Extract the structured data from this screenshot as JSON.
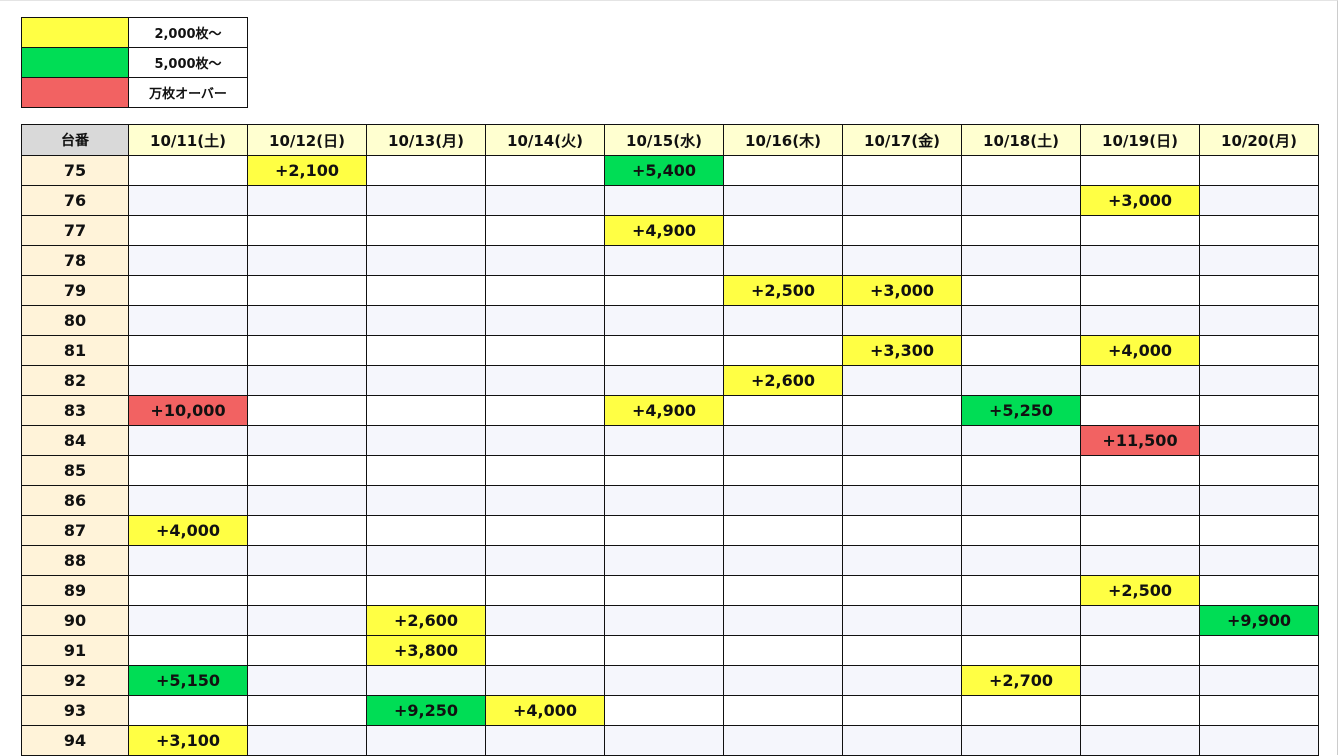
{
  "legend": [
    {
      "label": "2,000枚〜",
      "color": "#ffff44"
    },
    {
      "label": "5,000枚〜",
      "color": "#00dd55"
    },
    {
      "label": "万枚オーバー",
      "color": "#f26262"
    }
  ],
  "table": {
    "corner": "台番",
    "days": [
      "10/11(土)",
      "10/12(日)",
      "10/13(月)",
      "10/14(火)",
      "10/15(水)",
      "10/16(木)",
      "10/17(金)",
      "10/18(土)",
      "10/19(日)",
      "10/20(月)"
    ],
    "rows": [
      {
        "no": "75",
        "cells": [
          "",
          "+2,100",
          "",
          "",
          "+5,400",
          "",
          "",
          "",
          "",
          ""
        ]
      },
      {
        "no": "76",
        "cells": [
          "",
          "",
          "",
          "",
          "",
          "",
          "",
          "",
          "+3,000",
          ""
        ]
      },
      {
        "no": "77",
        "cells": [
          "",
          "",
          "",
          "",
          "+4,900",
          "",
          "",
          "",
          "",
          ""
        ]
      },
      {
        "no": "78",
        "cells": [
          "",
          "",
          "",
          "",
          "",
          "",
          "",
          "",
          "",
          ""
        ]
      },
      {
        "no": "79",
        "cells": [
          "",
          "",
          "",
          "",
          "",
          "+2,500",
          "+3,000",
          "",
          "",
          ""
        ]
      },
      {
        "no": "80",
        "cells": [
          "",
          "",
          "",
          "",
          "",
          "",
          "",
          "",
          "",
          ""
        ]
      },
      {
        "no": "81",
        "cells": [
          "",
          "",
          "",
          "",
          "",
          "",
          "+3,300",
          "",
          "+4,000",
          ""
        ]
      },
      {
        "no": "82",
        "cells": [
          "",
          "",
          "",
          "",
          "",
          "+2,600",
          "",
          "",
          "",
          ""
        ]
      },
      {
        "no": "83",
        "cells": [
          "+10,000",
          "",
          "",
          "",
          "+4,900",
          "",
          "",
          "+5,250",
          "",
          ""
        ]
      },
      {
        "no": "84",
        "cells": [
          "",
          "",
          "",
          "",
          "",
          "",
          "",
          "",
          "+11,500",
          ""
        ]
      },
      {
        "no": "85",
        "cells": [
          "",
          "",
          "",
          "",
          "",
          "",
          "",
          "",
          "",
          ""
        ]
      },
      {
        "no": "86",
        "cells": [
          "",
          "",
          "",
          "",
          "",
          "",
          "",
          "",
          "",
          ""
        ]
      },
      {
        "no": "87",
        "cells": [
          "+4,000",
          "",
          "",
          "",
          "",
          "",
          "",
          "",
          "",
          ""
        ]
      },
      {
        "no": "88",
        "cells": [
          "",
          "",
          "",
          "",
          "",
          "",
          "",
          "",
          "",
          ""
        ]
      },
      {
        "no": "89",
        "cells": [
          "",
          "",
          "",
          "",
          "",
          "",
          "",
          "",
          "+2,500",
          ""
        ]
      },
      {
        "no": "90",
        "cells": [
          "",
          "",
          "+2,600",
          "",
          "",
          "",
          "",
          "",
          "",
          "+9,900"
        ]
      },
      {
        "no": "91",
        "cells": [
          "",
          "",
          "+3,800",
          "",
          "",
          "",
          "",
          "",
          "",
          ""
        ]
      },
      {
        "no": "92",
        "cells": [
          "+5,150",
          "",
          "",
          "",
          "",
          "",
          "",
          "+2,700",
          "",
          ""
        ]
      },
      {
        "no": "93",
        "cells": [
          "",
          "",
          "+9,250",
          "+4,000",
          "",
          "",
          "",
          "",
          "",
          ""
        ]
      },
      {
        "no": "94",
        "cells": [
          "+3,100",
          "",
          "",
          "",
          "",
          "",
          "",
          "",
          "",
          ""
        ]
      }
    ]
  }
}
